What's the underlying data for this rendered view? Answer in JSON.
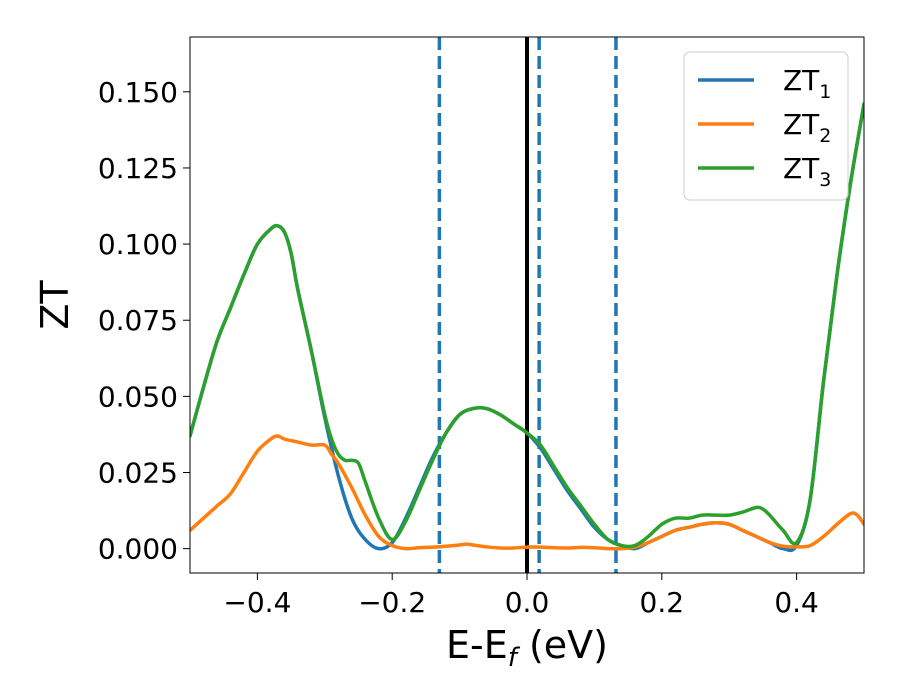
{
  "chart_data": {
    "type": "line",
    "xlabel": {
      "base": "E-E",
      "sub": "f",
      "tail": " (eV)"
    },
    "ylabel": "ZT",
    "xlim": [
      -0.5,
      0.5
    ],
    "ylim": [
      -0.008,
      0.168
    ],
    "xticks": [
      -0.4,
      -0.2,
      0.0,
      0.2,
      0.4
    ],
    "xtick_labels": [
      "−0.4",
      "−0.2",
      "0.0",
      "0.2",
      "0.4"
    ],
    "yticks": [
      0.0,
      0.025,
      0.05,
      0.075,
      0.1,
      0.125,
      0.15
    ],
    "ytick_labels": [
      "0.000",
      "0.025",
      "0.050",
      "0.075",
      "0.100",
      "0.125",
      "0.150"
    ],
    "grid": false,
    "legend_position": "upper right",
    "vlines": [
      {
        "x": -0.13,
        "style": "dashed",
        "color": "#1f77b4"
      },
      {
        "x": 0.018,
        "style": "dashed",
        "color": "#1f77b4"
      },
      {
        "x": 0.132,
        "style": "dashed",
        "color": "#1f77b4"
      },
      {
        "x": 0.0,
        "style": "solid",
        "color": "#000000"
      }
    ],
    "series": [
      {
        "name": "ZT",
        "name_sub": "1",
        "color": "#1f77b4",
        "points": [
          [
            -0.5,
            0.037
          ],
          [
            -0.48,
            0.053
          ],
          [
            -0.46,
            0.068
          ],
          [
            -0.44,
            0.079
          ],
          [
            -0.42,
            0.09
          ],
          [
            -0.4,
            0.1
          ],
          [
            -0.38,
            0.105
          ],
          [
            -0.37,
            0.106
          ],
          [
            -0.36,
            0.104
          ],
          [
            -0.35,
            0.097
          ],
          [
            -0.34,
            0.085
          ],
          [
            -0.32,
            0.065
          ],
          [
            -0.3,
            0.043
          ],
          [
            -0.28,
            0.024
          ],
          [
            -0.26,
            0.01
          ],
          [
            -0.24,
            0.003
          ],
          [
            -0.22,
            0.0
          ],
          [
            -0.2,
            0.002
          ],
          [
            -0.18,
            0.01
          ],
          [
            -0.16,
            0.02
          ],
          [
            -0.14,
            0.03
          ],
          [
            -0.12,
            0.038
          ],
          [
            -0.1,
            0.044
          ],
          [
            -0.08,
            0.046
          ],
          [
            -0.06,
            0.046
          ],
          [
            -0.04,
            0.044
          ],
          [
            -0.02,
            0.041
          ],
          [
            0.0,
            0.038
          ],
          [
            0.02,
            0.033
          ],
          [
            0.04,
            0.026
          ],
          [
            0.06,
            0.019
          ],
          [
            0.08,
            0.013
          ],
          [
            0.1,
            0.007
          ],
          [
            0.12,
            0.003
          ],
          [
            0.14,
            0.001
          ],
          [
            0.16,
            0.0
          ],
          [
            0.18,
            0.002
          ],
          [
            0.2,
            0.004
          ],
          [
            0.22,
            0.006
          ],
          [
            0.24,
            0.007
          ],
          [
            0.26,
            0.008
          ],
          [
            0.28,
            0.0085
          ],
          [
            0.3,
            0.008
          ],
          [
            0.32,
            0.006
          ],
          [
            0.34,
            0.004
          ],
          [
            0.36,
            0.002
          ],
          [
            0.38,
            0.0
          ],
          [
            0.4,
            0.001
          ],
          [
            0.42,
            0.016
          ],
          [
            0.44,
            0.055
          ],
          [
            0.46,
            0.09
          ],
          [
            0.48,
            0.12
          ],
          [
            0.5,
            0.146
          ]
        ]
      },
      {
        "name": "ZT",
        "name_sub": "2",
        "color": "#ff7f0e",
        "points": [
          [
            -0.5,
            0.006
          ],
          [
            -0.48,
            0.01
          ],
          [
            -0.46,
            0.014
          ],
          [
            -0.44,
            0.018
          ],
          [
            -0.42,
            0.025
          ],
          [
            -0.4,
            0.032
          ],
          [
            -0.38,
            0.036
          ],
          [
            -0.37,
            0.037
          ],
          [
            -0.36,
            0.036
          ],
          [
            -0.34,
            0.035
          ],
          [
            -0.32,
            0.034
          ],
          [
            -0.3,
            0.034
          ],
          [
            -0.29,
            0.031
          ],
          [
            -0.28,
            0.028
          ],
          [
            -0.26,
            0.02
          ],
          [
            -0.24,
            0.011
          ],
          [
            -0.22,
            0.004
          ],
          [
            -0.2,
            0.001
          ],
          [
            -0.18,
            0.0
          ],
          [
            -0.16,
            0.0003
          ],
          [
            -0.14,
            0.0005
          ],
          [
            -0.12,
            0.0008
          ],
          [
            -0.1,
            0.0012
          ],
          [
            -0.09,
            0.0015
          ],
          [
            -0.08,
            0.0012
          ],
          [
            -0.06,
            0.0006
          ],
          [
            -0.04,
            0.0002
          ],
          [
            -0.02,
            0.0002
          ],
          [
            0.0,
            0.0005
          ],
          [
            0.02,
            0.0005
          ],
          [
            0.04,
            0.0003
          ],
          [
            0.06,
            0.0002
          ],
          [
            0.08,
            0.0004
          ],
          [
            0.1,
            0.0003
          ],
          [
            0.12,
            0.0
          ],
          [
            0.14,
            0.0
          ],
          [
            0.16,
            0.0005
          ],
          [
            0.18,
            0.002
          ],
          [
            0.2,
            0.004
          ],
          [
            0.22,
            0.006
          ],
          [
            0.24,
            0.007
          ],
          [
            0.26,
            0.008
          ],
          [
            0.28,
            0.0085
          ],
          [
            0.3,
            0.008
          ],
          [
            0.32,
            0.006
          ],
          [
            0.34,
            0.004
          ],
          [
            0.36,
            0.002
          ],
          [
            0.38,
            0.0008
          ],
          [
            0.4,
            0.0006
          ],
          [
            0.42,
            0.001
          ],
          [
            0.44,
            0.004
          ],
          [
            0.46,
            0.008
          ],
          [
            0.48,
            0.0115
          ],
          [
            0.49,
            0.011
          ],
          [
            0.5,
            0.008
          ]
        ]
      },
      {
        "name": "ZT",
        "name_sub": "3",
        "color": "#2ca02c",
        "points": [
          [
            -0.5,
            0.037
          ],
          [
            -0.48,
            0.053
          ],
          [
            -0.46,
            0.068
          ],
          [
            -0.44,
            0.079
          ],
          [
            -0.42,
            0.09
          ],
          [
            -0.4,
            0.1
          ],
          [
            -0.38,
            0.105
          ],
          [
            -0.37,
            0.106
          ],
          [
            -0.36,
            0.104
          ],
          [
            -0.35,
            0.097
          ],
          [
            -0.34,
            0.085
          ],
          [
            -0.32,
            0.065
          ],
          [
            -0.3,
            0.044
          ],
          [
            -0.29,
            0.036
          ],
          [
            -0.28,
            0.031
          ],
          [
            -0.27,
            0.029
          ],
          [
            -0.26,
            0.029
          ],
          [
            -0.25,
            0.028
          ],
          [
            -0.24,
            0.022
          ],
          [
            -0.22,
            0.01
          ],
          [
            -0.2,
            0.003
          ],
          [
            -0.18,
            0.009
          ],
          [
            -0.16,
            0.019
          ],
          [
            -0.14,
            0.029
          ],
          [
            -0.12,
            0.038
          ],
          [
            -0.1,
            0.044
          ],
          [
            -0.08,
            0.046
          ],
          [
            -0.06,
            0.046
          ],
          [
            -0.04,
            0.044
          ],
          [
            -0.02,
            0.041
          ],
          [
            0.0,
            0.038
          ],
          [
            0.02,
            0.034
          ],
          [
            0.04,
            0.027
          ],
          [
            0.06,
            0.02
          ],
          [
            0.08,
            0.014
          ],
          [
            0.1,
            0.008
          ],
          [
            0.12,
            0.003
          ],
          [
            0.14,
            0.001
          ],
          [
            0.16,
            0.001
          ],
          [
            0.18,
            0.004
          ],
          [
            0.2,
            0.008
          ],
          [
            0.22,
            0.01
          ],
          [
            0.24,
            0.01
          ],
          [
            0.26,
            0.011
          ],
          [
            0.28,
            0.011
          ],
          [
            0.3,
            0.011
          ],
          [
            0.32,
            0.012
          ],
          [
            0.34,
            0.0135
          ],
          [
            0.35,
            0.013
          ],
          [
            0.36,
            0.011
          ],
          [
            0.38,
            0.006
          ],
          [
            0.4,
            0.002
          ],
          [
            0.42,
            0.016
          ],
          [
            0.44,
            0.055
          ],
          [
            0.46,
            0.09
          ],
          [
            0.48,
            0.12
          ],
          [
            0.5,
            0.146
          ]
        ]
      }
    ]
  }
}
